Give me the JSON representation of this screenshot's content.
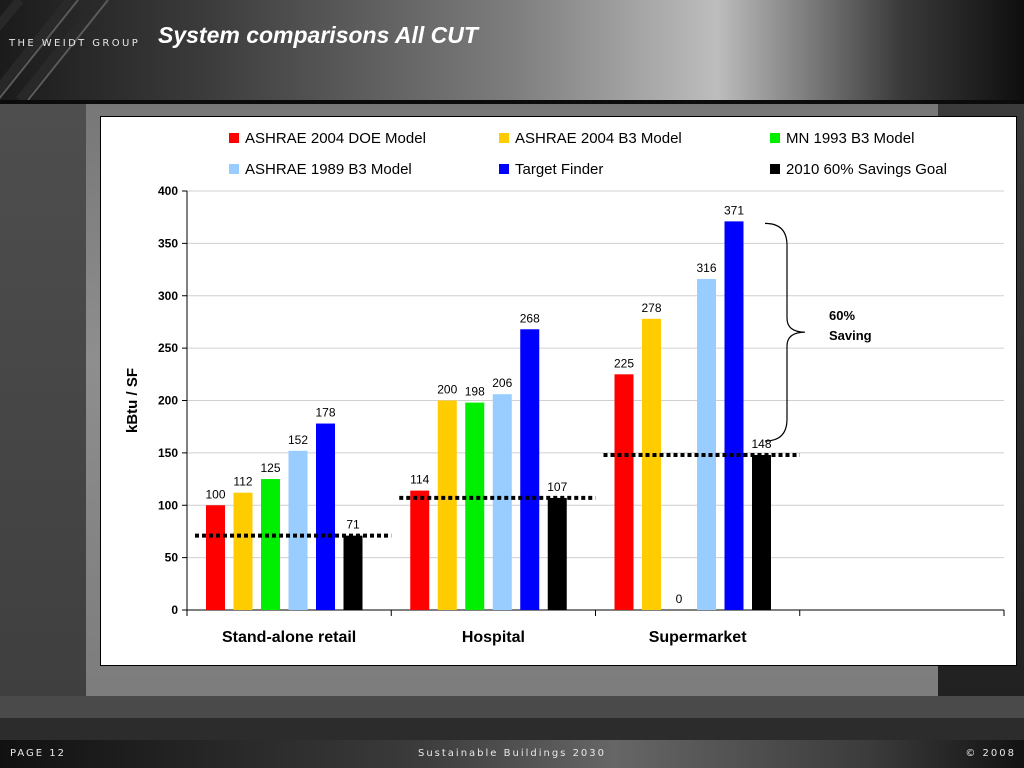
{
  "header": {
    "brand": "THE WEIDT GROUP",
    "title": "System comparisons All CUT"
  },
  "footer": {
    "page": "PAGE 12",
    "center": "Sustainable Buildings 2030",
    "copyright": "© 2008"
  },
  "colors": {
    "ASHRAE 2004 DOE Model": "#ff0000",
    "ASHRAE 2004 B3 Model": "#ffcc00",
    "MN 1993 B3 Model": "#00ee00",
    "ASHRAE 1989 B3 Model": "#99ccff",
    "Target Finder": "#0000ff",
    "2010 60% Savings Goal": "#000000"
  },
  "chart_data": {
    "type": "bar",
    "title": "",
    "xlabel": "",
    "ylabel": "kBtu / SF",
    "ylim": [
      0,
      400
    ],
    "yticks": [
      0,
      50,
      100,
      150,
      200,
      250,
      300,
      350,
      400
    ],
    "grid": true,
    "legend_position": "top",
    "categories": [
      "Stand-alone retail",
      "Hospital",
      "Supermarket"
    ],
    "series": [
      {
        "name": "ASHRAE 2004 DOE Model",
        "values": [
          100,
          114,
          225
        ],
        "labels": [
          "100",
          "114",
          "225"
        ]
      },
      {
        "name": "ASHRAE 2004 B3 Model",
        "values": [
          112,
          200,
          278
        ],
        "labels": [
          "112",
          "200",
          "278"
        ]
      },
      {
        "name": "MN 1993 B3 Model",
        "values": [
          125,
          198,
          0
        ],
        "labels": [
          "125",
          "198",
          "0"
        ]
      },
      {
        "name": "ASHRAE 1989 B3 Model",
        "values": [
          152,
          206,
          316
        ],
        "labels": [
          "152",
          "206",
          "316"
        ]
      },
      {
        "name": "Target Finder",
        "values": [
          178,
          268,
          371
        ],
        "labels": [
          "178",
          "268",
          "371"
        ]
      },
      {
        "name": "2010 60% Savings Goal",
        "values": [
          71,
          107,
          148
        ],
        "labels": [
          "71",
          "107",
          "148"
        ]
      }
    ],
    "goal_lines": [
      71,
      107,
      148
    ],
    "annotation": {
      "text_line1": "60%",
      "text_line2": "Saving",
      "from": 371,
      "to": 148,
      "category": "Supermarket"
    }
  }
}
